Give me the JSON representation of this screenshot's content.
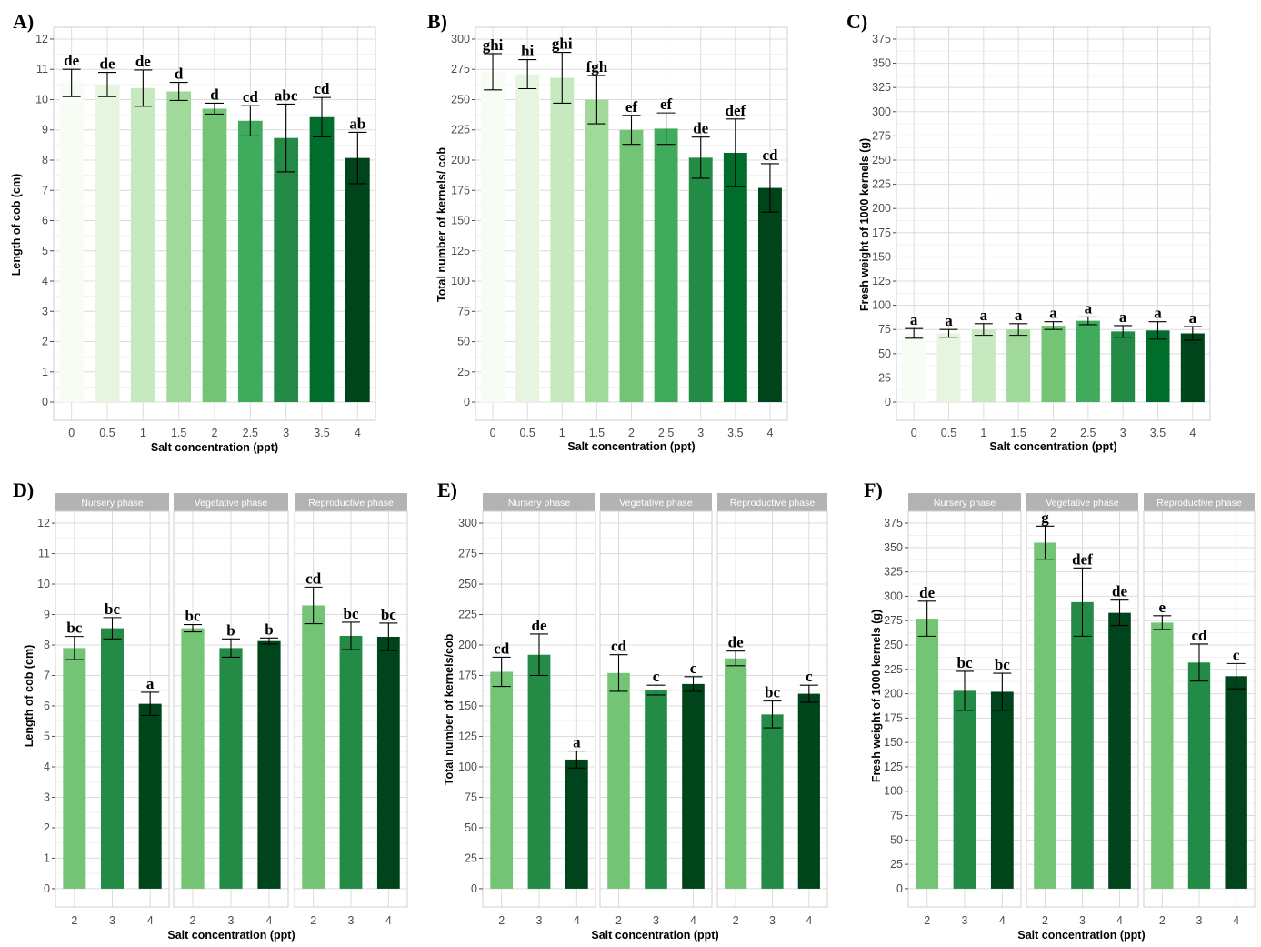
{
  "colors": {
    "shade9": [
      "#f7fcf5",
      "#e5f5e0",
      "#c7e9c0",
      "#a1d99b",
      "#74c476",
      "#41ab5d",
      "#238b45",
      "#006d2c",
      "#00441b"
    ],
    "shade3": [
      "#74c476",
      "#238b45",
      "#00441b"
    ],
    "strip": "#b3b3b3"
  },
  "chart_data": [
    {
      "panel": "A)",
      "type": "bar",
      "categories": [
        "0",
        "0.5",
        "1",
        "1.5",
        "2",
        "2.5",
        "3",
        "3.5",
        "4"
      ],
      "values": [
        10.55,
        10.5,
        10.38,
        10.27,
        9.7,
        9.3,
        8.73,
        9.42,
        8.07
      ],
      "errors": [
        0.45,
        0.4,
        0.6,
        0.3,
        0.18,
        0.5,
        1.12,
        0.65,
        0.85
      ],
      "letters": [
        "de",
        "de",
        "de",
        "d",
        "d",
        "cd",
        "abc",
        "cd",
        "ab"
      ],
      "xlabel": "Salt concentration (ppt)",
      "ylabel": "Length of cob (cm)",
      "ylim": [
        0,
        12
      ],
      "yticks": [
        0,
        1,
        2,
        3,
        4,
        5,
        6,
        7,
        8,
        9,
        10,
        11,
        12
      ],
      "grid": true
    },
    {
      "panel": "B)",
      "type": "bar",
      "categories": [
        "0",
        "0.5",
        "1",
        "1.5",
        "2",
        "2.5",
        "3",
        "3.5",
        "4"
      ],
      "values": [
        273,
        271,
        268,
        250,
        225,
        226,
        202,
        206,
        177
      ],
      "errors": [
        15,
        12,
        21,
        20,
        12,
        13,
        17,
        28,
        20
      ],
      "letters": [
        "ghi",
        "hi",
        "ghi",
        "fgh",
        "ef",
        "ef",
        "de",
        "def",
        "cd"
      ],
      "xlabel": "Salt concentration (ppt)",
      "ylabel": "Total number of kernels/ cob",
      "ylim": [
        0,
        300
      ],
      "yticks": [
        0,
        25,
        50,
        75,
        100,
        125,
        150,
        175,
        200,
        225,
        250,
        275,
        300
      ],
      "grid": true
    },
    {
      "panel": "C)",
      "type": "bar",
      "categories": [
        "0",
        "0.5",
        "1",
        "1.5",
        "2",
        "2.5",
        "3",
        "3.5",
        "4"
      ],
      "values": [
        71,
        71,
        75,
        75,
        79,
        84,
        73,
        74,
        71
      ],
      "errors": [
        5,
        4,
        6,
        6,
        4,
        4,
        6,
        9,
        7
      ],
      "letters": [
        "a",
        "a",
        "a",
        "a",
        "a",
        "a",
        "a",
        "a",
        "a"
      ],
      "xlabel": "Salt concentration (ppt)",
      "ylabel": "Fresh weight of 1000 kernels (g)",
      "ylim": [
        0,
        375
      ],
      "yticks": [
        0,
        25,
        50,
        75,
        100,
        125,
        150,
        175,
        200,
        225,
        250,
        275,
        300,
        325,
        350,
        375
      ],
      "grid": true
    },
    {
      "panel": "D)",
      "type": "bar",
      "facets": [
        {
          "strip": "Nursery phase",
          "categories": [
            "2",
            "3",
            "4"
          ],
          "values": [
            7.9,
            8.55,
            6.07
          ],
          "errors": [
            0.38,
            0.35,
            0.38
          ],
          "letters": [
            "bc",
            "bc",
            "a"
          ]
        },
        {
          "strip": "Vegetative phase",
          "categories": [
            "2",
            "3",
            "4"
          ],
          "values": [
            8.55,
            7.9,
            8.13
          ],
          "errors": [
            0.12,
            0.3,
            0.1
          ],
          "letters": [
            "bc",
            "b",
            "b"
          ]
        },
        {
          "strip": "Reproductive phase",
          "categories": [
            "2",
            "3",
            "4"
          ],
          "values": [
            9.3,
            8.3,
            8.27
          ],
          "errors": [
            0.6,
            0.45,
            0.45
          ],
          "letters": [
            "cd",
            "bc",
            "bc"
          ]
        }
      ],
      "xlabel": "Salt concentration (ppt)",
      "ylabel": "Length of cob (cm)",
      "ylim": [
        0,
        12
      ],
      "yticks": [
        0,
        1,
        2,
        3,
        4,
        5,
        6,
        7,
        8,
        9,
        10,
        11,
        12
      ],
      "grid": true
    },
    {
      "panel": "E)",
      "type": "bar",
      "facets": [
        {
          "strip": "Nursery phase",
          "categories": [
            "2",
            "3",
            "4"
          ],
          "values": [
            178,
            192,
            106
          ],
          "errors": [
            12,
            17,
            7
          ],
          "letters": [
            "cd",
            "de",
            "a"
          ]
        },
        {
          "strip": "Vegetative phase",
          "categories": [
            "2",
            "3",
            "4"
          ],
          "values": [
            177,
            163,
            168
          ],
          "errors": [
            15,
            4,
            6
          ],
          "letters": [
            "cd",
            "c",
            "c"
          ]
        },
        {
          "strip": "Reproductive phase",
          "categories": [
            "2",
            "3",
            "4"
          ],
          "values": [
            189,
            143,
            160
          ],
          "errors": [
            6,
            11,
            7
          ],
          "letters": [
            "de",
            "bc",
            "c"
          ]
        }
      ],
      "xlabel": "Salt concentration (ppt)",
      "ylabel": "Total number of kernels/cob",
      "ylim": [
        0,
        300
      ],
      "yticks": [
        0,
        25,
        50,
        75,
        100,
        125,
        150,
        175,
        200,
        225,
        250,
        275,
        300
      ],
      "grid": true
    },
    {
      "panel": "F)",
      "type": "bar",
      "facets": [
        {
          "strip": "Nursery phase",
          "categories": [
            "2",
            "3",
            "4"
          ],
          "values": [
            277,
            203,
            202
          ],
          "errors": [
            18,
            20,
            19
          ],
          "letters": [
            "de",
            "bc",
            "bc"
          ]
        },
        {
          "strip": "Vegetative phase",
          "categories": [
            "2",
            "3",
            "4"
          ],
          "values": [
            355,
            294,
            283
          ],
          "errors": [
            17,
            35,
            13
          ],
          "letters": [
            "g",
            "def",
            "de"
          ]
        },
        {
          "strip": "Reproductive phase",
          "categories": [
            "2",
            "3",
            "4"
          ],
          "values": [
            273,
            232,
            218
          ],
          "errors": [
            7,
            19,
            13
          ],
          "letters": [
            "e",
            "cd",
            "c"
          ]
        }
      ],
      "xlabel": "Salt concentration (ppt)",
      "ylabel": "Fresh weight of 1000 kernels (g)",
      "ylim": [
        0,
        375
      ],
      "yticks": [
        0,
        25,
        50,
        75,
        100,
        125,
        150,
        175,
        200,
        225,
        250,
        275,
        300,
        325,
        350,
        375
      ],
      "grid": true
    }
  ]
}
